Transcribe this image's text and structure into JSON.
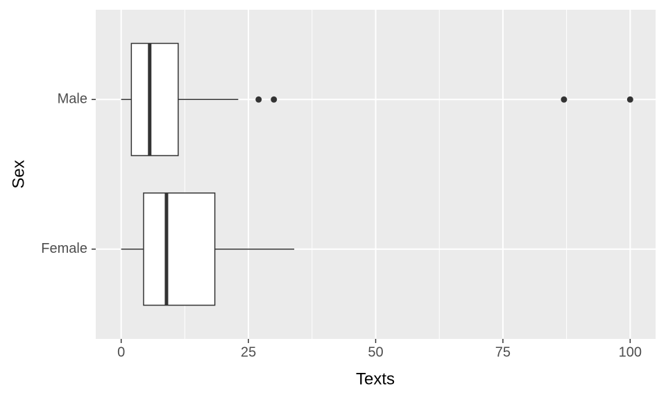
{
  "chart_data": {
    "type": "boxplot",
    "orientation": "horizontal",
    "x_label": "Texts",
    "y_label": "Sex",
    "categories": [
      "Male",
      "Female"
    ],
    "boxes": [
      {
        "min": 0,
        "q1": 2,
        "median": 5.6,
        "q3": 11.2,
        "max": 23,
        "outliers": [
          27,
          30,
          87,
          100
        ]
      },
      {
        "min": 0,
        "q1": 4.4,
        "median": 8.9,
        "q3": 18.4,
        "max": 34,
        "outliers": []
      }
    ],
    "xlim": [
      -5,
      105
    ],
    "xticks": [
      0,
      25,
      50,
      75,
      100
    ],
    "x_minor_ticks": [
      12.5,
      37.5,
      62.5,
      87.5
    ],
    "grid": true,
    "panel_color": "#ebebeb",
    "box_fill": "#ffffff",
    "line_color": "#333333"
  }
}
